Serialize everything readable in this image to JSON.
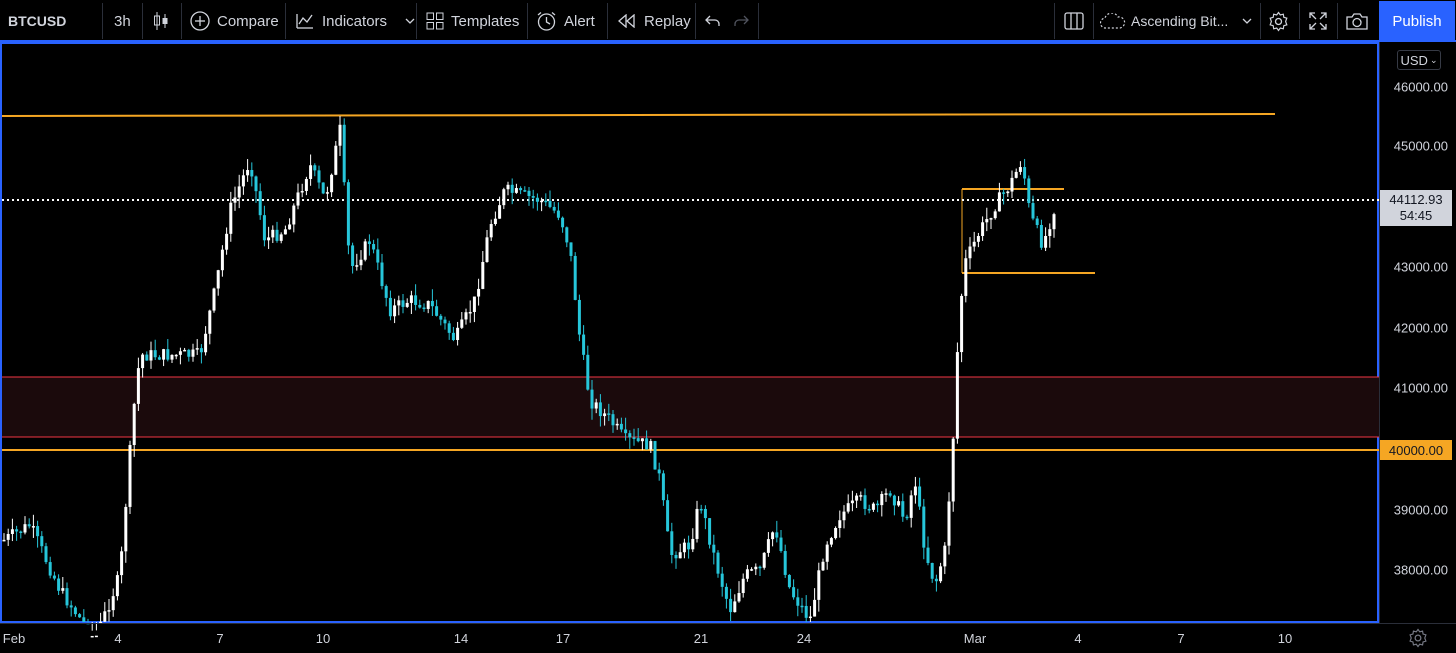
{
  "toolbar": {
    "symbol": "BTCUSD",
    "interval": "3h",
    "compare_label": "Compare",
    "indicators_label": "Indicators",
    "templates_label": "Templates",
    "alert_label": "Alert",
    "replay_label": "Replay",
    "layout_name": "Ascending Bit...",
    "publish_label": "Publish"
  },
  "price_axis": {
    "currency": "USD",
    "labels": [
      "46000.00",
      "45000.00",
      "43000.00",
      "42000.00",
      "41000.00",
      "39000.00",
      "38000.00"
    ],
    "last_price": "44112.93",
    "countdown": "54:45",
    "level_label": "40000.00"
  },
  "time_axis": {
    "labels": [
      "Feb",
      "4",
      "7",
      "10",
      "14",
      "17",
      "21",
      "24",
      "Mar",
      "4",
      "7",
      "10"
    ]
  },
  "colors": {
    "accent": "#2962ff",
    "up_candle": "#ffffff",
    "down_candle": "#26c6da",
    "level_line": "#f5a623",
    "zone_border": "#f23645",
    "zone_fill": "#1b0a0c"
  },
  "icons": [
    "candles-icon",
    "plus-circle-icon",
    "indicators-icon",
    "templates-icon",
    "alert-clock-icon",
    "replay-icon",
    "undo-icon",
    "redo-icon",
    "layout-grid-icon",
    "cloud-icon",
    "gear-icon",
    "fullscreen-icon",
    "camera-icon"
  ]
}
